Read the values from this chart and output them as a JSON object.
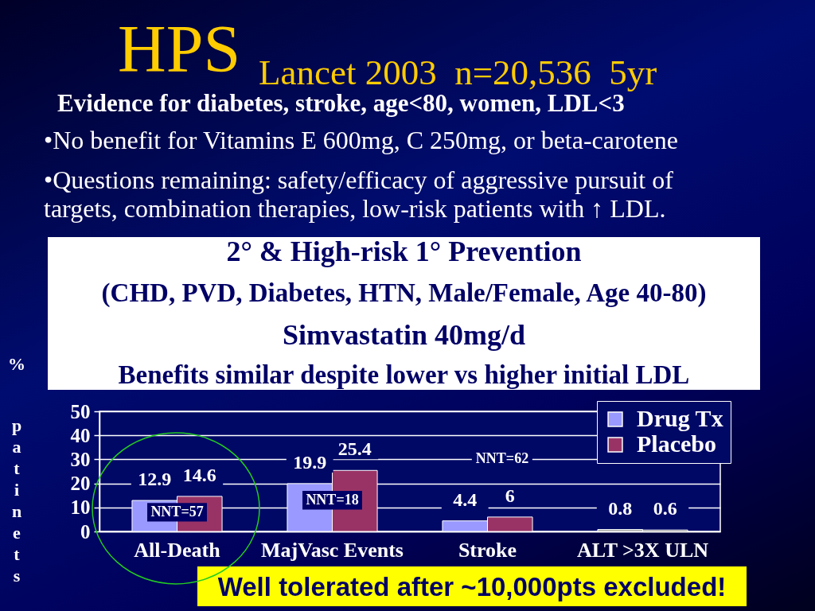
{
  "chart_data": {
    "type": "bar",
    "title": "HPS",
    "subtitle": "Lancet 2003  n=20,536  5yr",
    "ylabel": "% patinets",
    "categories": [
      "All-Death",
      "MajVasc Events",
      "Stroke",
      "ALT >3X ULN"
    ],
    "series": [
      {
        "name": "Drug Tx",
        "color": "#9999ff",
        "colors": [
          "#9999ff",
          "#9999ff",
          "#9999ff",
          "#a6a6a6"
        ],
        "values": [
          12.9,
          19.9,
          4.4,
          0.8
        ]
      },
      {
        "name": "Placebo",
        "color": "#993366",
        "colors": [
          "#993366",
          "#993366",
          "#993366",
          "#6b6b6b"
        ],
        "values": [
          14.6,
          25.4,
          6,
          0.6
        ]
      }
    ],
    "ylim": [
      0,
      50
    ],
    "yticks": [
      0,
      10,
      20,
      30,
      40,
      50
    ],
    "grid": "y",
    "legend": "top right",
    "data_labels": true,
    "annotations": [
      "Evidence for diabetes, stroke, age<80, women, LDL<3",
      "•No benefit for Vitamins E 600mg, C 250mg, or beta-carotene",
      "•Questions remaining: safety/efficacy of aggressive pursuit of targets, combination therapies, low-risk patients with ↑ LDL.",
      "2° & High-risk 1° Prevention",
      "(CHD, PVD, Diabetes, HTN, Male/Female, Age 40-80)",
      "Simvastatin 40mg/d",
      "Benefits similar despite lower vs higher initial LDL",
      {
        "text": "NNT=57",
        "x": "All-Death",
        "y": 8
      },
      {
        "text": "NNT=18",
        "x": "MajVasc Events",
        "y": 13
      },
      "NNT=62",
      "Well tolerated after ~10,000pts excluded!"
    ]
  }
}
